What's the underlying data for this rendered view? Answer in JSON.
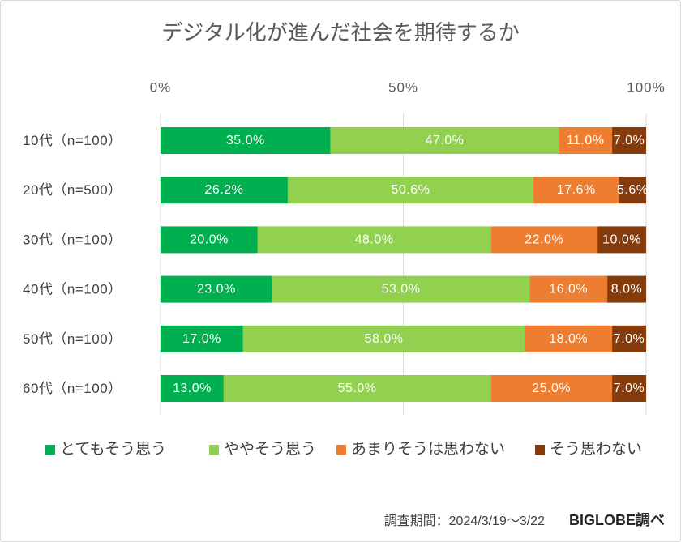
{
  "chart_data": {
    "type": "bar",
    "orientation": "horizontal",
    "stacked": true,
    "title": "デジタル化が進んだ社会を期待するか",
    "categories": [
      "10代（n=100）",
      "20代（n=500）",
      "30代（n=100）",
      "40代（n=100）",
      "50代（n=100）",
      "60代（n=100）"
    ],
    "series": [
      {
        "name": "とてもそう思う",
        "color": "#00B050",
        "values": [
          35.0,
          26.2,
          20.0,
          23.0,
          17.0,
          13.0
        ],
        "labels": [
          "35.0%",
          "26.2%",
          "20.0%",
          "23.0%",
          "17.0%",
          "13.0%"
        ]
      },
      {
        "name": "ややそう思う",
        "color": "#92D050",
        "values": [
          47.0,
          50.6,
          48.0,
          53.0,
          58.0,
          55.0
        ],
        "labels": [
          "47.0%",
          "50.6%",
          "48.0%",
          "53.0%",
          "58.0%",
          "55.0%"
        ]
      },
      {
        "name": "あまりそうは思わない",
        "color": "#ED7D31",
        "values": [
          11.0,
          17.6,
          22.0,
          16.0,
          18.0,
          25.0
        ],
        "labels": [
          "11.0%",
          "17.6%",
          "22.0%",
          "16.0%",
          "18.0%",
          "25.0%"
        ]
      },
      {
        "name": "そう思わない",
        "color": "#843C0C",
        "values": [
          7.0,
          5.6,
          10.0,
          8.0,
          7.0,
          7.0
        ],
        "labels": [
          "7.0%",
          "5.6%",
          "10.0%",
          "8.0%",
          "7.0%",
          "7.0%"
        ]
      }
    ],
    "xlim": [
      0,
      100
    ],
    "xticks": [
      0,
      50,
      100
    ],
    "xtick_labels": [
      "0%",
      "50%",
      "100%"
    ],
    "x_axis_position": "top",
    "xlabel": "",
    "ylabel": "",
    "grid": true,
    "legend_position": "bottom"
  },
  "footer": {
    "survey_period": "調査期間：2024/3/19～3/22",
    "source": "BIGLOBE調べ"
  }
}
